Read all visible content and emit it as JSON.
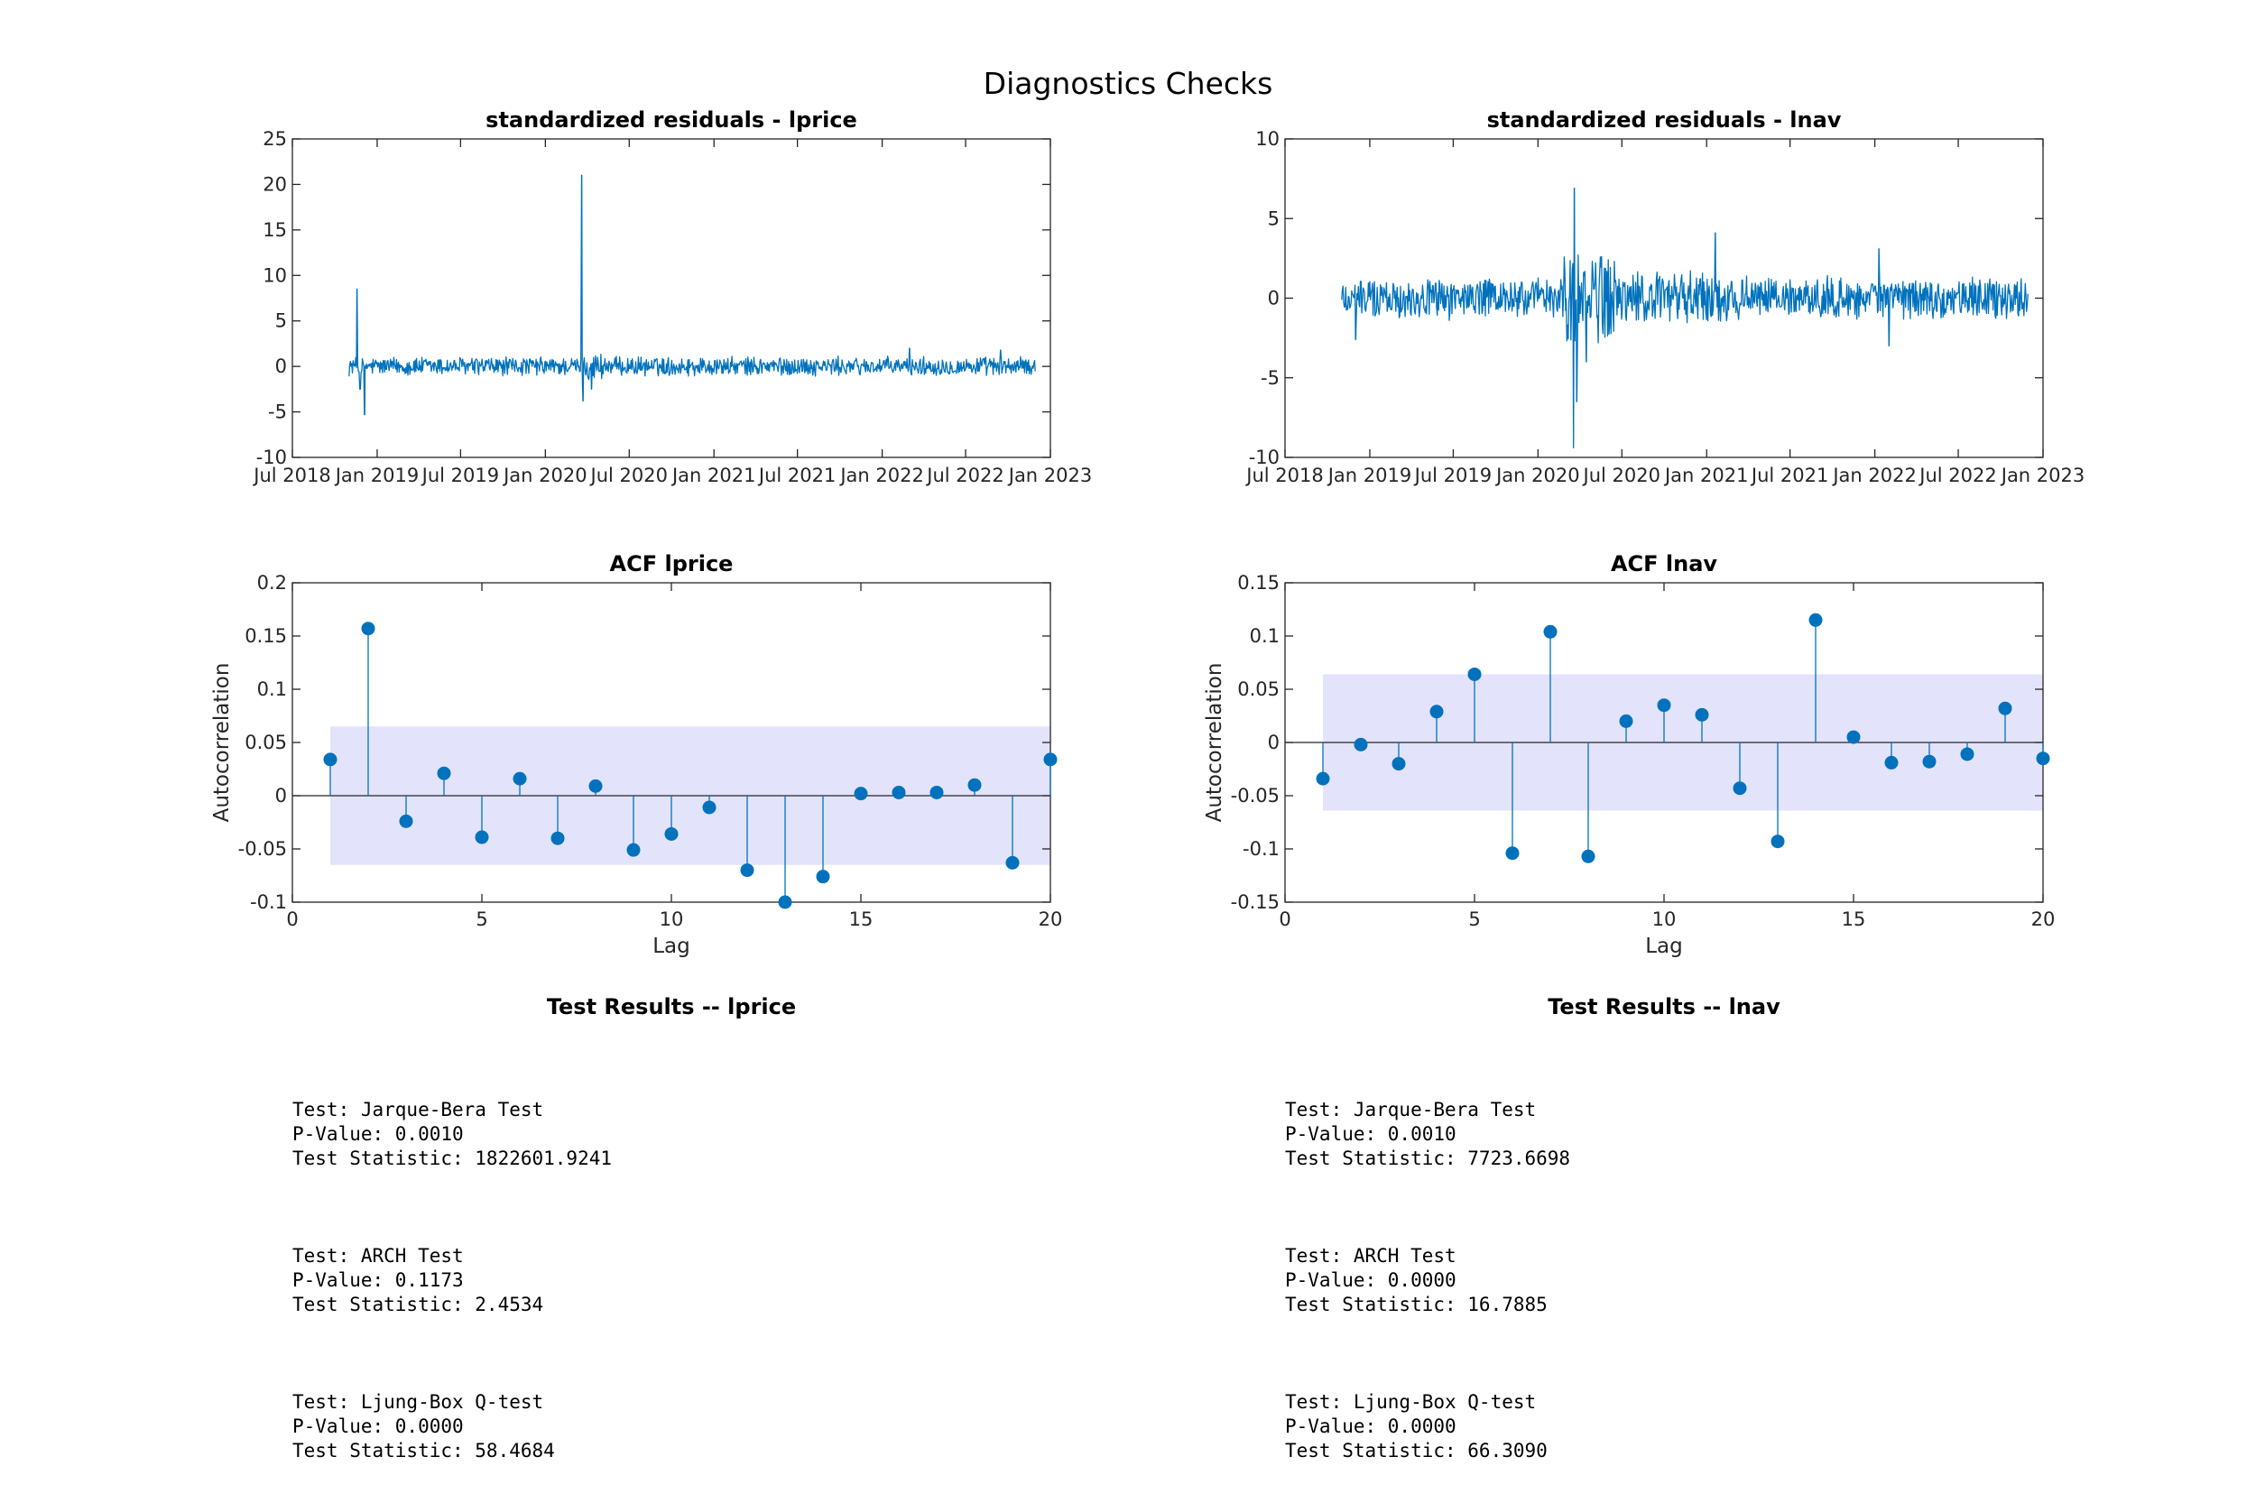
{
  "figure_title": "Diagnostics Checks",
  "colors": {
    "line": "#0072BD",
    "band": "#E3E3FC",
    "axis": "#262626"
  },
  "chart_data": [
    {
      "id": "resid_lprice",
      "type": "line",
      "title": "standardized residuals - lprice",
      "xlabel": "",
      "ylabel": "",
      "x_ticks": [
        "Jul 2018",
        "Jan 2019",
        "Jul 2019",
        "Jan 2020",
        "Jul 2020",
        "Jan 2021",
        "Jul 2021",
        "Jan 2022",
        "Jul 2022",
        "Jan 2023"
      ],
      "y_ticks": [
        -10,
        -5,
        0,
        5,
        10,
        15,
        20,
        25
      ],
      "ylim": [
        -10,
        25
      ],
      "xlim": [
        "2018-07-01",
        "2023-01-01"
      ],
      "series": [
        {
          "x_start": "2018-11-01",
          "x_end": "2022-11-30",
          "notable_points": [
            {
              "x": "2018-11-18",
              "y": 8.5
            },
            {
              "x": "2018-11-25",
              "y": -2.5
            },
            {
              "x": "2018-12-05",
              "y": -5.3
            },
            {
              "x": "2020-03-20",
              "y": 21
            },
            {
              "x": "2020-03-23",
              "y": -3.8
            },
            {
              "x": "2020-04-10",
              "y": -2.5
            },
            {
              "x": "2022-03-01",
              "y": 2.0
            },
            {
              "x": "2022-09-15",
              "y": 1.8
            }
          ],
          "typical_range": [
            -1.2,
            1.2
          ]
        }
      ],
      "grid": false
    },
    {
      "id": "resid_lnav",
      "type": "line",
      "title": "standardized residuals - lnav",
      "xlabel": "",
      "ylabel": "",
      "x_ticks": [
        "Jul 2018",
        "Jan 2019",
        "Jul 2019",
        "Jan 2020",
        "Jul 2020",
        "Jan 2021",
        "Jul 2021",
        "Jan 2022",
        "Jul 2022",
        "Jan 2023"
      ],
      "y_ticks": [
        -10,
        -5,
        0,
        5,
        10
      ],
      "ylim": [
        -10,
        10
      ],
      "xlim": [
        "2018-07-01",
        "2023-01-01"
      ],
      "series": [
        {
          "x_start": "2018-11-01",
          "x_end": "2022-11-30",
          "notable_points": [
            {
              "x": "2020-03-20",
              "y": 6.9
            },
            {
              "x": "2020-03-18",
              "y": -9.4
            },
            {
              "x": "2020-03-25",
              "y": -6.5
            },
            {
              "x": "2020-04-15",
              "y": -4.0
            },
            {
              "x": "2021-01-20",
              "y": 4.1
            },
            {
              "x": "2022-01-10",
              "y": 3.1
            },
            {
              "x": "2018-12-01",
              "y": -2.6
            },
            {
              "x": "2022-02-01",
              "y": -3.0
            }
          ],
          "typical_range": [
            -1.5,
            1.5
          ]
        }
      ],
      "grid": false
    },
    {
      "id": "acf_lprice",
      "type": "stem",
      "title": "ACF lprice",
      "xlabel": "Lag",
      "ylabel": "Autocorrelation",
      "x_ticks": [
        0,
        5,
        10,
        15,
        20
      ],
      "y_ticks": [
        "-0.1",
        "-0.05",
        "0",
        "0.05",
        "0.1",
        "0.15",
        "0.2"
      ],
      "xlim": [
        0,
        20
      ],
      "ylim": [
        -0.1,
        0.2
      ],
      "confidence_bounds": [
        -0.065,
        0.065
      ],
      "lags": [
        1,
        2,
        3,
        4,
        5,
        6,
        7,
        8,
        9,
        10,
        11,
        12,
        13,
        14,
        15,
        16,
        17,
        18,
        19,
        20
      ],
      "values": [
        0.034,
        0.157,
        -0.024,
        0.021,
        -0.039,
        0.016,
        -0.04,
        0.009,
        -0.051,
        -0.036,
        -0.011,
        -0.07,
        -0.1,
        -0.076,
        0.002,
        0.003,
        0.003,
        0.01,
        -0.063,
        0.034
      ]
    },
    {
      "id": "acf_lnav",
      "type": "stem",
      "title": "ACF lnav",
      "xlabel": "Lag",
      "ylabel": "Autocorrelation",
      "x_ticks": [
        0,
        5,
        10,
        15,
        20
      ],
      "y_ticks": [
        "-0.15",
        "-0.1",
        "-0.05",
        "0",
        "0.05",
        "0.1",
        "0.15"
      ],
      "xlim": [
        0,
        20
      ],
      "ylim": [
        -0.15,
        0.15
      ],
      "confidence_bounds": [
        -0.064,
        0.064
      ],
      "lags": [
        1,
        2,
        3,
        4,
        5,
        6,
        7,
        8,
        9,
        10,
        11,
        12,
        13,
        14,
        15,
        16,
        17,
        18,
        19,
        20
      ],
      "values": [
        -0.034,
        -0.002,
        -0.02,
        0.029,
        0.064,
        -0.104,
        0.104,
        -0.107,
        0.02,
        0.035,
        0.026,
        -0.043,
        -0.093,
        0.115,
        0.005,
        -0.019,
        -0.018,
        -0.011,
        0.032,
        -0.015
      ]
    }
  ],
  "tests": {
    "lprice": {
      "title": "Test Results -- lprice",
      "entries": [
        {
          "test": "Test: Jarque-Bera Test",
          "p": "P-Value: 0.0010",
          "stat": "Test Statistic: 1822601.9241"
        },
        {
          "test": "Test: ARCH Test",
          "p": "P-Value: 0.1173",
          "stat": "Test Statistic: 2.4534"
        },
        {
          "test": "Test: Ljung-Box Q-test",
          "p": "P-Value: 0.0000",
          "stat": "Test Statistic: 58.4684"
        }
      ]
    },
    "lnav": {
      "title": "Test Results -- lnav",
      "entries": [
        {
          "test": "Test: Jarque-Bera Test",
          "p": "P-Value: 0.0010",
          "stat": "Test Statistic: 7723.6698"
        },
        {
          "test": "Test: ARCH Test",
          "p": "P-Value: 0.0000",
          "stat": "Test Statistic: 16.7885"
        },
        {
          "test": "Test: Ljung-Box Q-test",
          "p": "P-Value: 0.0000",
          "stat": "Test Statistic: 66.3090"
        }
      ]
    }
  }
}
